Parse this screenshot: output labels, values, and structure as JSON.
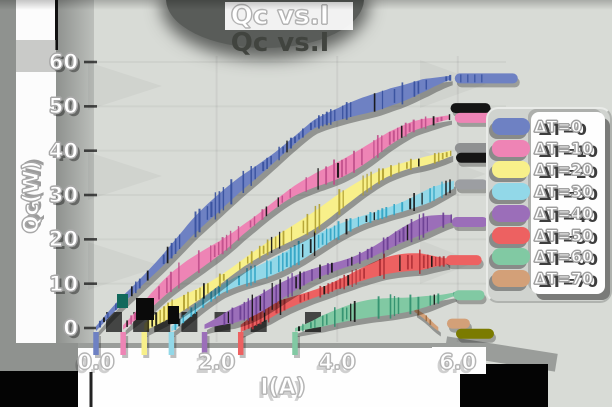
{
  "title": "Qc vs.I",
  "axes": {
    "x_label": "I(A)",
    "y_label": "Qc(W)",
    "x_ticks": [
      {
        "label": "0.0",
        "value": 0
      },
      {
        "label": "2.0",
        "value": 2
      },
      {
        "label": "4.0",
        "value": 4
      },
      {
        "label": "6.0",
        "value": 6
      }
    ],
    "y_ticks": [
      {
        "label": "0",
        "value": 0
      },
      {
        "label": "10",
        "value": 10
      },
      {
        "label": "20",
        "value": 20
      },
      {
        "label": "30",
        "value": 30
      },
      {
        "label": "40",
        "value": 40
      },
      {
        "label": "50",
        "value": 50
      },
      {
        "label": "60",
        "value": 60
      }
    ]
  },
  "legend": {
    "position": "right",
    "entries": [
      {
        "label": "ΔT=0",
        "color": "#6e81c3"
      },
      {
        "label": "ΔT=10",
        "color": "#ee84b5"
      },
      {
        "label": "ΔT=20",
        "color": "#f8f08a"
      },
      {
        "label": "ΔT=30",
        "color": "#92d8e8"
      },
      {
        "label": "ΔT=40",
        "color": "#9b6eb9"
      },
      {
        "label": "ΔT=50",
        "color": "#ed6161"
      },
      {
        "label": "ΔT=60",
        "color": "#81c9a3"
      },
      {
        "label": "ΔT=70",
        "color": "#d3a078"
      }
    ]
  },
  "colors": {
    "background": "#d8dbd6",
    "text": "#ffffff",
    "text_outline": "#a6a6a6",
    "shadow": "#000000",
    "axis_band": "#9a9d9a",
    "label_box": "#ffffff"
  },
  "chart_data": {
    "type": "line",
    "title": "Qc vs.I",
    "xlabel": "I(A)",
    "ylabel": "Qc(W)",
    "xlim": [
      0,
      6.9
    ],
    "ylim": [
      -5,
      62
    ],
    "grid": true,
    "legend_position": "right",
    "series": [
      {
        "name": "ΔT=0",
        "color": "#6e81c3",
        "dark": "#36509e",
        "tail": true,
        "points": [
          [
            0,
            0
          ],
          [
            0.4,
            6.4
          ],
          [
            0.8,
            12
          ],
          [
            1.2,
            17.2
          ],
          [
            1.6,
            22.4
          ],
          [
            2,
            27
          ],
          [
            2.4,
            32
          ],
          [
            2.8,
            36.6
          ],
          [
            3.2,
            41
          ],
          [
            3.6,
            45
          ],
          [
            4,
            47.2
          ],
          [
            4.4,
            49.8
          ],
          [
            4.9,
            52.8
          ],
          [
            5.4,
            55
          ],
          [
            5.9,
            56.6
          ]
        ],
        "caps": [
          {
            "x1": 5.95,
            "x2": 7.0,
            "y": 56.3,
            "color": "#6e81c3"
          }
        ]
      },
      {
        "name": "ΔT=10",
        "color": "#ee84b5",
        "dark": "#c04e8a",
        "tail": true,
        "points": [
          [
            0.45,
            0
          ],
          [
            0.85,
            4.6
          ],
          [
            1.25,
            9.4
          ],
          [
            1.65,
            13.8
          ],
          [
            2.05,
            18.2
          ],
          [
            2.45,
            22.8
          ],
          [
            2.85,
            26.8
          ],
          [
            3.25,
            30.6
          ],
          [
            3.65,
            33.8
          ],
          [
            4.05,
            36.8
          ],
          [
            4.45,
            40
          ],
          [
            4.85,
            43
          ],
          [
            5.25,
            45.2
          ],
          [
            5.6,
            46.4
          ],
          [
            5.9,
            47.6
          ]
        ],
        "caps": [
          {
            "x1": 5.88,
            "x2": 6.55,
            "y": 49.6,
            "color": "#141414"
          },
          {
            "x1": 5.95,
            "x2": 6.6,
            "y": 47.4,
            "color": "#ee84b5"
          }
        ]
      },
      {
        "name": "ΔT=20",
        "color": "#f8f08a",
        "dark": "#b0a030",
        "tail": true,
        "points": [
          [
            0.8,
            0
          ],
          [
            1.2,
            4.4
          ],
          [
            1.6,
            8
          ],
          [
            2,
            11.2
          ],
          [
            2.4,
            14.4
          ],
          [
            2.8,
            17.6
          ],
          [
            3.2,
            21
          ],
          [
            3.6,
            24.4
          ],
          [
            4,
            28
          ],
          [
            4.4,
            31
          ],
          [
            4.8,
            33.8
          ],
          [
            5.2,
            36.2
          ],
          [
            5.6,
            38.2
          ],
          [
            5.9,
            39.6
          ]
        ],
        "caps": [
          {
            "x1": 5.95,
            "x2": 6.6,
            "y": 40.6,
            "color": "#8f9192"
          },
          {
            "x1": 5.97,
            "x2": 6.68,
            "y": 38.4,
            "color": "#151515"
          }
        ]
      },
      {
        "name": "ΔT=30",
        "color": "#92d8e8",
        "dark": "#2fa3c4",
        "tail": true,
        "points": [
          [
            1.25,
            0
          ],
          [
            1.7,
            4.4
          ],
          [
            2.1,
            7.8
          ],
          [
            2.5,
            10.6
          ],
          [
            2.9,
            13.4
          ],
          [
            3.3,
            16.4
          ],
          [
            3.7,
            19.2
          ],
          [
            4.1,
            22
          ],
          [
            4.5,
            24.8
          ],
          [
            4.9,
            27.4
          ],
          [
            5.3,
            29.6
          ],
          [
            5.95,
            32.6
          ]
        ],
        "caps": [
          {
            "x1": 5.95,
            "x2": 6.5,
            "y": 32.4,
            "color": "#9c9ea2"
          }
        ]
      },
      {
        "name": "ΔT=40",
        "color": "#9b6eb9",
        "dark": "#6a3e92",
        "tail": true,
        "points": [
          [
            1.8,
            0
          ],
          [
            2.2,
            3
          ],
          [
            2.6,
            5.6
          ],
          [
            3,
            8.4
          ],
          [
            3.4,
            11
          ],
          [
            3.8,
            13.4
          ],
          [
            4.2,
            15.6
          ],
          [
            4.6,
            18
          ],
          [
            5,
            20.4
          ],
          [
            5.4,
            22.2
          ],
          [
            5.9,
            24
          ]
        ],
        "caps": [
          {
            "x1": 5.9,
            "x2": 6.5,
            "y": 23.9,
            "color": "#9b6eb9"
          }
        ]
      },
      {
        "name": "ΔT=50",
        "color": "#ed6161",
        "dark": "#b03036",
        "tail": true,
        "points": [
          [
            2.4,
            0
          ],
          [
            2.8,
            2.6
          ],
          [
            3.2,
            5
          ],
          [
            3.6,
            7.4
          ],
          [
            4,
            9.6
          ],
          [
            4.4,
            11.4
          ],
          [
            4.8,
            13
          ],
          [
            5.2,
            14.2
          ],
          [
            5.6,
            15.2
          ],
          [
            5.85,
            15.6
          ]
        ],
        "caps": [
          {
            "x1": 5.8,
            "x2": 6.4,
            "y": 15.3,
            "color": "#ed6161"
          }
        ]
      },
      {
        "name": "ΔT=60",
        "color": "#81c9a3",
        "dark": "#2e8f6d",
        "tail": true,
        "points": [
          [
            3.3,
            0
          ],
          [
            3.7,
            1.6
          ],
          [
            4.1,
            3
          ],
          [
            4.6,
            4.8
          ],
          [
            5,
            6
          ],
          [
            5.4,
            6.9
          ],
          [
            5.95,
            7.8
          ]
        ],
        "caps": [
          {
            "x1": 5.93,
            "x2": 6.45,
            "y": 7.4,
            "color": "#81c9a3"
          }
        ]
      },
      {
        "name": "ΔT=70",
        "color": "#d3a078",
        "dark": "#9c6a40",
        "tail": false,
        "points": [
          [
            5.28,
            3.4
          ],
          [
            5.45,
            1.6
          ],
          [
            5.58,
            -0.3
          ],
          [
            5.72,
            -1.9
          ]
        ],
        "caps": [
          {
            "x1": 5.82,
            "x2": 6.2,
            "y": 1.0,
            "color": "#d3a078"
          },
          {
            "x1": 5.97,
            "x2": 6.6,
            "y": -1.3,
            "color": "#7b7b00"
          }
        ]
      }
    ]
  }
}
